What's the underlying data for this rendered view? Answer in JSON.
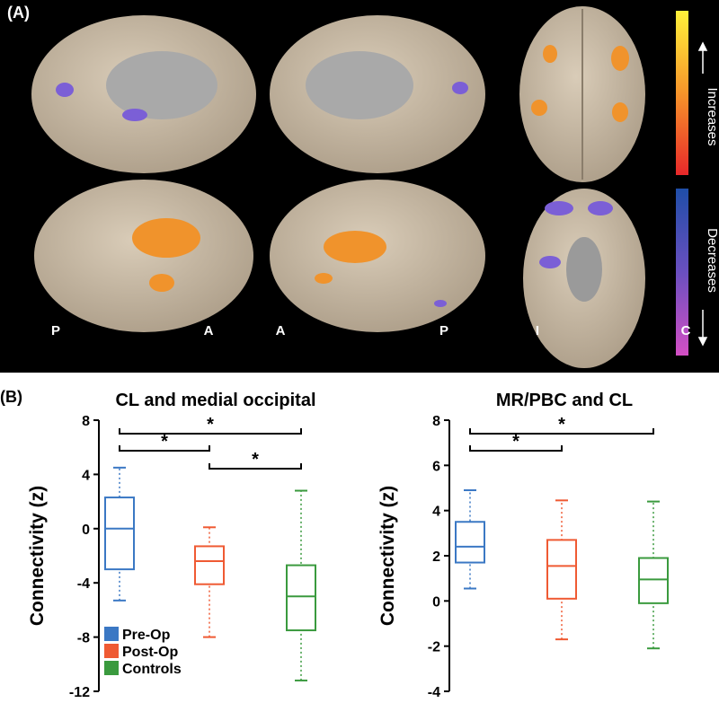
{
  "panel_a": {
    "label": "(A)",
    "orientation_labels": [
      "P",
      "A",
      "A",
      "P",
      "I",
      "C"
    ],
    "colorbar_labels": [
      "Increases",
      "Decreases"
    ]
  },
  "panel_b_label": "(B)",
  "chart_data": [
    {
      "type": "box",
      "title": "CL and medial occipital",
      "ylabel": "Connectivity (z)",
      "ylim": [
        -12,
        8
      ],
      "yticks": [
        -12,
        -8,
        -4,
        0,
        4,
        8
      ],
      "legend": "lower left",
      "series": [
        {
          "name": "Pre-Op",
          "color": "#3b78c4",
          "whisker_low": -5.3,
          "q1": -3,
          "median": 0,
          "q3": 2.3,
          "whisker_high": 4.5
        },
        {
          "name": "Post-Op",
          "color": "#ef5a33",
          "whisker_low": -8,
          "q1": -4.1,
          "median": -2.4,
          "q3": -1.3,
          "whisker_high": 0.1
        },
        {
          "name": "Controls",
          "color": "#3a9a3e",
          "whisker_low": -11.2,
          "q1": -7.5,
          "median": -5,
          "q3": -2.7,
          "whisker_high": 2.8
        }
      ],
      "significance": [
        {
          "groups": [
            "Pre-Op",
            "Controls"
          ],
          "label": "*"
        },
        {
          "groups": [
            "Pre-Op",
            "Post-Op"
          ],
          "label": "*"
        },
        {
          "groups": [
            "Post-Op",
            "Controls"
          ],
          "label": "*"
        }
      ]
    },
    {
      "type": "box",
      "title": "MR/PBC and CL",
      "ylabel": "Connectivity (z)",
      "ylim": [
        -4,
        8
      ],
      "yticks": [
        -4,
        -2,
        0,
        2,
        4,
        6,
        8
      ],
      "series": [
        {
          "name": "Pre-Op",
          "color": "#3b78c4",
          "whisker_low": 0.55,
          "q1": 1.7,
          "median": 2.4,
          "q3": 3.5,
          "whisker_high": 4.9
        },
        {
          "name": "Post-Op",
          "color": "#ef5a33",
          "whisker_low": -1.7,
          "q1": 0.1,
          "median": 1.55,
          "q3": 2.7,
          "whisker_high": 4.45
        },
        {
          "name": "Controls",
          "color": "#3a9a3e",
          "whisker_low": -2.1,
          "q1": -0.1,
          "median": 0.95,
          "q3": 1.9,
          "whisker_high": 4.4
        }
      ],
      "significance": [
        {
          "groups": [
            "Pre-Op",
            "Controls"
          ],
          "label": "*"
        },
        {
          "groups": [
            "Pre-Op",
            "Post-Op"
          ],
          "label": "*"
        }
      ]
    }
  ]
}
